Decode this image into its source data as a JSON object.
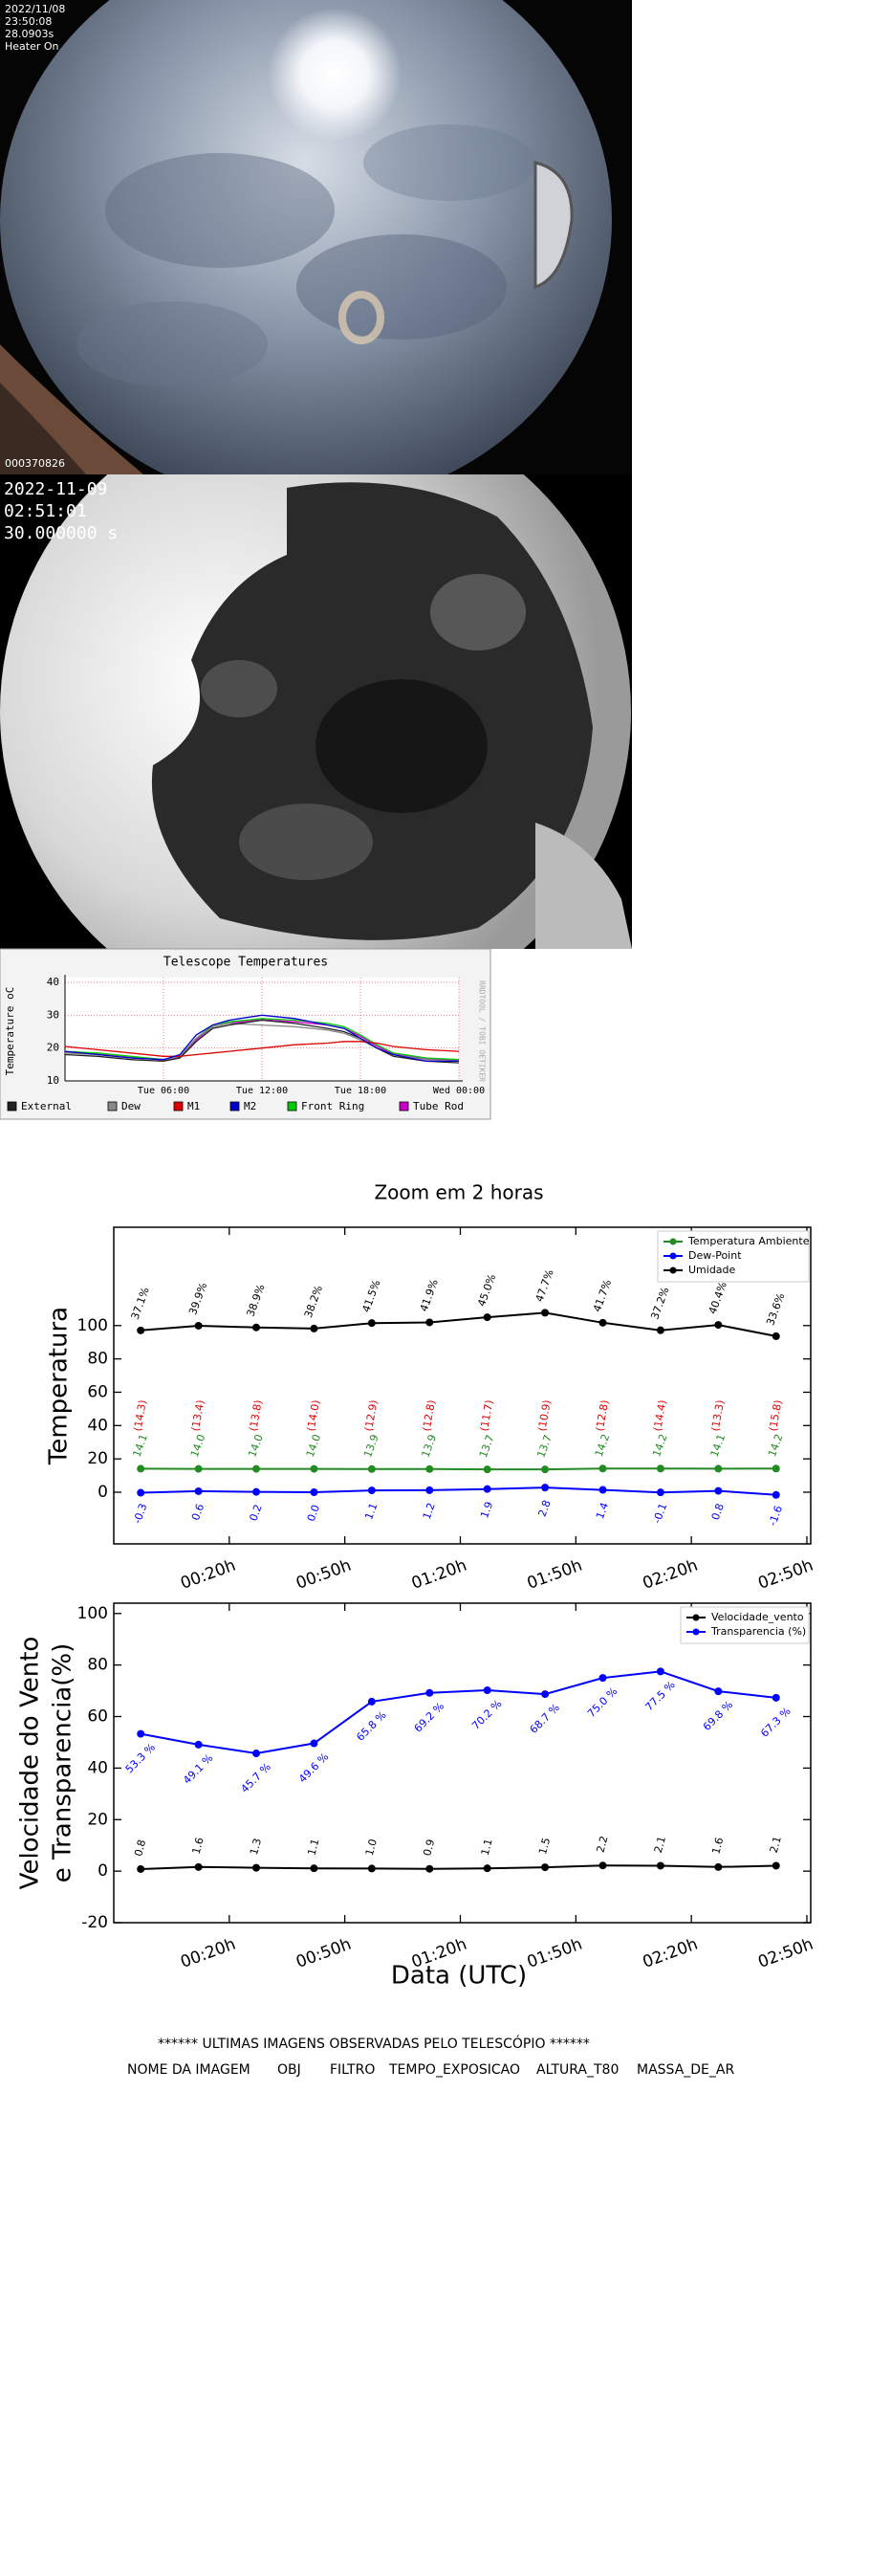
{
  "camera1": {
    "lines": [
      "2022/11/08",
      "23:50:08",
      "28.0903s",
      "Heater On"
    ],
    "id": "000370826"
  },
  "camera2": {
    "lines": [
      "2022-11-09",
      "02:51:01",
      "30.000000 s"
    ]
  },
  "chart_data": [
    {
      "type": "line",
      "title": "Telescope Temperatures",
      "y_label": "Temperature oC",
      "side_text": "RRDTOOL / TOBI OETIKER",
      "x": [
        0,
        2,
        4,
        6,
        7,
        8,
        9,
        10,
        12,
        14,
        16,
        17,
        18,
        19,
        20,
        22,
        24
      ],
      "xlim": [
        0,
        24
      ],
      "xticks": [
        {
          "value": 6,
          "label": "Tue 06:00"
        },
        {
          "value": 12,
          "label": "Tue 12:00"
        },
        {
          "value": 18,
          "label": "Tue 18:00"
        },
        {
          "value": 24,
          "label": "Wed 00:00"
        }
      ],
      "ylim": [
        10,
        40
      ],
      "yticks": [
        10,
        20,
        30,
        40
      ],
      "grid": true,
      "series": [
        {
          "name": "External",
          "color": "#222222",
          "values": [
            18,
            17.5,
            16.5,
            16,
            17,
            22,
            26,
            27,
            28.5,
            27.5,
            26,
            25,
            23,
            20,
            17.5,
            16,
            15.5
          ]
        },
        {
          "name": "Dew",
          "color": "#888888",
          "values": [
            18.5,
            18,
            17,
            16.5,
            17.5,
            23,
            26.5,
            27.5,
            27,
            26.5,
            25.5,
            24.5,
            22.5,
            20,
            18,
            16.5,
            16
          ]
        },
        {
          "name": "M1",
          "color": "#dd0000",
          "values": [
            20.5,
            19.5,
            18.5,
            17.5,
            17.5,
            18,
            18.5,
            19,
            20,
            21,
            21.5,
            22,
            22,
            21.5,
            20.5,
            19.5,
            19
          ]
        },
        {
          "name": "M2",
          "color": "#0000cc",
          "values": [
            19,
            18,
            17,
            16.5,
            18,
            24,
            27,
            28.5,
            30,
            29,
            27,
            26,
            23,
            20,
            18,
            16,
            16
          ]
        },
        {
          "name": "Front Ring",
          "color": "#00cc00",
          "values": [
            19,
            18.5,
            17.5,
            16.5,
            17.5,
            23,
            27,
            28,
            29,
            28.5,
            27.5,
            26.5,
            24,
            21,
            18.5,
            17,
            16.5
          ]
        },
        {
          "name": "Tube Rod",
          "color": "#cc00cc",
          "values": [
            18.8,
            18.3,
            17.3,
            16.3,
            17.3,
            22.5,
            26.5,
            27.6,
            28.6,
            28,
            27,
            26,
            23.6,
            20.6,
            18.2,
            16.7,
            16.2
          ]
        }
      ]
    },
    {
      "type": "line",
      "title": "Zoom em 2 horas",
      "y_label": "Temperatura",
      "x": [
        -3,
        12,
        27,
        42,
        57,
        72,
        87,
        102,
        117,
        132,
        147,
        162
      ],
      "xlim": [
        -10,
        171
      ],
      "xticks": [
        {
          "value": 20,
          "label": "00:20h"
        },
        {
          "value": 50,
          "label": "00:50h"
        },
        {
          "value": 80,
          "label": "01:20h"
        },
        {
          "value": 110,
          "label": "01:50h"
        },
        {
          "value": 140,
          "label": "02:20h"
        },
        {
          "value": 170,
          "label": "02:50h"
        }
      ],
      "ylim": [
        -31,
        159
      ],
      "yticks": [
        0,
        20,
        40,
        60,
        80,
        100
      ],
      "legend": "upper right",
      "series": [
        {
          "name": "Temperatura Ambiente",
          "color": "#228b22",
          "values": [
            14.1,
            14.0,
            14.0,
            14.0,
            13.9,
            13.9,
            13.7,
            13.7,
            14.2,
            14.2,
            14.1,
            14.2
          ],
          "value_labels": [
            "14.1",
            "14.0",
            "14.0",
            "14.0",
            "13.9",
            "13.9",
            "13.7",
            "13.7",
            "14.2",
            "14.2",
            "14.1",
            "14.2"
          ]
        },
        {
          "name": "Dew-Point",
          "color": "#0000ff",
          "values": [
            -0.3,
            0.6,
            0.2,
            0.0,
            1.1,
            1.2,
            1.9,
            2.8,
            1.4,
            -0.1,
            0.8,
            -1.6
          ],
          "value_labels": [
            "-0.3",
            "0.6",
            "0.2",
            "0.0",
            "1.1",
            "1.2",
            "1.9",
            "2.8",
            "1.4",
            "-0.1",
            "0.8",
            "-1.6"
          ]
        },
        {
          "name": "Umidade",
          "color": "#000000",
          "values": [
            97.1,
            99.9,
            98.9,
            98.2,
            101.5,
            101.9,
            105.0,
            107.7,
            101.7,
            97.2,
            100.4,
            93.6
          ]
        }
      ],
      "humidity_labels": [
        "37.1%",
        "39.9%",
        "38.9%",
        "38.2%",
        "41.5%",
        "41.9%",
        "45.0%",
        "47.7%",
        "41.7%",
        "37.2%",
        "40.4%",
        "33.6%"
      ],
      "spread_labels": [
        "(14.3)",
        "(13.4)",
        "(13.8)",
        "(14.0)",
        "(12.9)",
        "(12.8)",
        "(11.7)",
        "(10.9)",
        "(12.8)",
        "(14.4)",
        "(13.3)",
        "(15.8)"
      ]
    },
    {
      "type": "line",
      "y_label": [
        "Velocidade do Vento",
        "e Transparencia(%)"
      ],
      "x_label": "Data (UTC)",
      "x": [
        -3,
        12,
        27,
        42,
        57,
        72,
        87,
        102,
        117,
        132,
        147,
        162
      ],
      "xlim": [
        -10,
        171
      ],
      "xticks": [
        {
          "value": 20,
          "label": "00:20h"
        },
        {
          "value": 50,
          "label": "00:50h"
        },
        {
          "value": 80,
          "label": "01:20h"
        },
        {
          "value": 110,
          "label": "01:50h"
        },
        {
          "value": 140,
          "label": "02:20h"
        },
        {
          "value": 170,
          "label": "02:50h"
        }
      ],
      "ylim": [
        -20,
        104
      ],
      "yticks": [
        -20,
        0,
        20,
        40,
        60,
        80,
        100
      ],
      "legend": "upper right",
      "series": [
        {
          "name": "Velocidade_vento",
          "color": "#000000",
          "values": [
            0.8,
            1.6,
            1.3,
            1.1,
            1.0,
            0.9,
            1.1,
            1.5,
            2.2,
            2.1,
            1.6,
            2.1
          ],
          "value_labels": [
            "0.8",
            "1.6",
            "1.3",
            "1.1",
            "1.0",
            "0.9",
            "1.1",
            "1.5",
            "2.2",
            "2.1",
            "1.6",
            "2.1"
          ]
        },
        {
          "name": "Transparencia (%)",
          "color": "#0000ff",
          "values": [
            53.3,
            49.1,
            45.7,
            49.6,
            65.8,
            69.2,
            70.2,
            68.7,
            75.0,
            77.5,
            69.8,
            67.3
          ],
          "value_labels": [
            "53.3 %",
            "49.1 %",
            "45.7 %",
            "49.6 %",
            "65.8 %",
            "69.2 %",
            "70.2 %",
            "68.7 %",
            "75.0 %",
            "77.5 %",
            "69.8 %",
            "67.3 %"
          ]
        }
      ]
    }
  ],
  "footer": {
    "heading": "****** ULTIMAS IMAGENS OBSERVADAS PELO TELESCÓPIO ******",
    "columns": [
      "NOME DA IMAGEM",
      "OBJ",
      "FILTRO",
      "TEMPO_EXPOSICAO",
      "ALTURA_T80",
      "MASSA_DE_AR"
    ]
  }
}
